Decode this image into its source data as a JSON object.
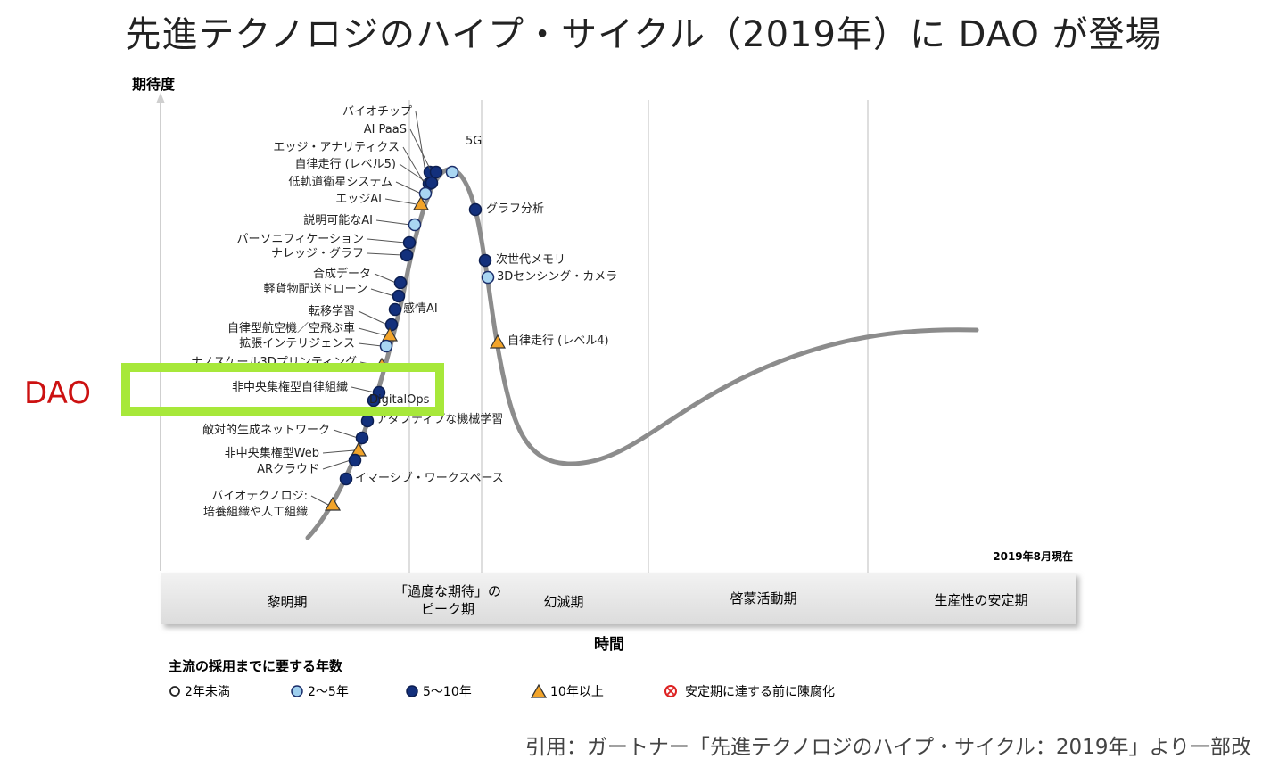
{
  "title": "先進テクノロジのハイプ・サイクル（2019年）に DAO が登場",
  "axes": {
    "y_label": "期待度",
    "x_label": "時間"
  },
  "as_of": "2019年8月現在",
  "phases": [
    "黎明期",
    "「過度な期待」の\nピーク期",
    "幻滅期",
    "啓蒙活動期",
    "生産性の安定期"
  ],
  "highlight": {
    "label": "DAO",
    "target": "非中央集権型自律組織",
    "color": "#a7e83a",
    "label_color": "#cc1111"
  },
  "legend": {
    "title": "主流の採用までに要する年数",
    "items": [
      {
        "shape": "circle-white",
        "label": "2年未満"
      },
      {
        "shape": "circle-light",
        "label": "2～5年"
      },
      {
        "shape": "circle-dark",
        "label": "5～10年"
      },
      {
        "shape": "triangle",
        "label": "10年以上"
      },
      {
        "shape": "cross-red",
        "label": "安定期に達する前に陳腐化"
      }
    ]
  },
  "technologies": [
    {
      "label": "バイオチップ",
      "marker": "circle-dark"
    },
    {
      "label": "AI PaaS",
      "marker": "circle-dark"
    },
    {
      "label": "5G",
      "marker": "circle-light"
    },
    {
      "label": "エッジ・アナリティクス",
      "marker": "circle-dark"
    },
    {
      "label": "自律走行 (レベル5)",
      "marker": "circle-dark"
    },
    {
      "label": "低軌道衛星システム",
      "marker": "circle-light"
    },
    {
      "label": "エッジAI",
      "marker": "triangle"
    },
    {
      "label": "説明可能なAI",
      "marker": "circle-light"
    },
    {
      "label": "グラフ分析",
      "marker": "circle-dark"
    },
    {
      "label": "パーソニフィケーション",
      "marker": "circle-dark"
    },
    {
      "label": "ナレッジ・グラフ",
      "marker": "circle-dark"
    },
    {
      "label": "次世代メモリ",
      "marker": "circle-dark"
    },
    {
      "label": "3Dセンシング・カメラ",
      "marker": "circle-light"
    },
    {
      "label": "合成データ",
      "marker": "circle-dark"
    },
    {
      "label": "軽貨物配送ドローン",
      "marker": "circle-dark"
    },
    {
      "label": "感情AI",
      "marker": "circle-dark"
    },
    {
      "label": "転移学習",
      "marker": "circle-dark"
    },
    {
      "label": "自律型航空機／空飛ぶ車",
      "marker": "triangle"
    },
    {
      "label": "拡張インテリジェンス",
      "marker": "circle-light"
    },
    {
      "label": "自律走行 (レベル4)",
      "marker": "triangle"
    },
    {
      "label": "ナノスケール3Dプリンティング",
      "marker": "triangle"
    },
    {
      "label": "非中央集権型自律組織",
      "marker": "circle-dark"
    },
    {
      "label": "DigitalOps",
      "marker": "circle-dark"
    },
    {
      "label": "アダプティブな機械学習",
      "marker": "circle-dark"
    },
    {
      "label": "敵対的生成ネットワーク",
      "marker": "circle-dark"
    },
    {
      "label": "非中央集権型Web",
      "marker": "triangle"
    },
    {
      "label": "ARクラウド",
      "marker": "circle-dark"
    },
    {
      "label": "イマーシブ・ワークスペース",
      "marker": "circle-dark"
    },
    {
      "label": "バイオテクノロジ:\n培養組織や人工組織",
      "marker": "triangle"
    }
  ],
  "citation": "引用：ガートナー「先進テクノロジのハイプ・サイクル：2019年」より一部改"
}
